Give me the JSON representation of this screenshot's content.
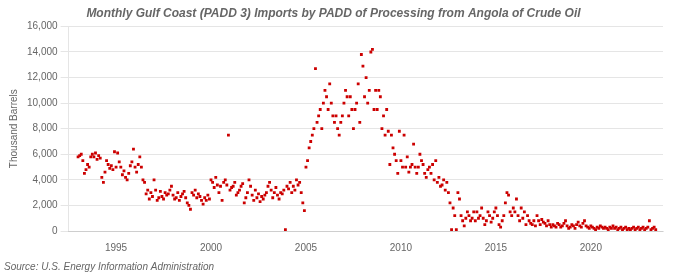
{
  "chart_data": {
    "type": "scatter",
    "title": "Monthly Gulf Coast (PADD 3) Imports by PADD of Processing from Angola of Crude Oil",
    "ylabel": "Thousand Barrels",
    "annotations": [
      "Source: U.S. Energy Information Administration"
    ],
    "color": "#cc0000",
    "marker": "square",
    "grid": "y",
    "xlim": [
      1992.5,
      2023.8
    ],
    "xticks": [
      1995,
      2000,
      2005,
      2010,
      2015,
      2020
    ],
    "ylim": [
      0,
      16000
    ],
    "yticks": [
      0,
      {
        "value": 2000,
        "label": "2,000"
      },
      {
        "value": 4000,
        "label": "4,000"
      },
      {
        "value": 6000,
        "label": "6,000"
      },
      {
        "value": 8000,
        "label": "8,000"
      },
      {
        "value": 10000,
        "label": "10,000"
      },
      {
        "value": 12000,
        "label": "12,000"
      },
      {
        "value": 14000,
        "label": "14,000"
      },
      {
        "value": 16000,
        "label": "16,000"
      }
    ],
    "x": [
      1993,
      1993.0833333333,
      1993.1666666667,
      1993.25,
      1993.3333333333,
      1993.4166666667,
      1993.5,
      1993.5833333333,
      1993.6666666667,
      1993.75,
      1993.8333333333,
      1993.9166666667,
      1994,
      1994.0833333333,
      1994.1666666667,
      1994.25,
      1994.3333333333,
      1994.4166666667,
      1994.5,
      1994.5833333333,
      1994.6666666667,
      1994.75,
      1994.8333333333,
      1994.9166666667,
      1995,
      1995.0833333333,
      1995.1666666667,
      1995.25,
      1995.3333333333,
      1995.4166666667,
      1995.5,
      1995.5833333333,
      1995.6666666667,
      1995.75,
      1995.8333333333,
      1995.9166666667,
      1996,
      1996.0833333333,
      1996.1666666667,
      1996.25,
      1996.3333333333,
      1996.4166666667,
      1996.5,
      1996.5833333333,
      1996.6666666667,
      1996.75,
      1996.8333333333,
      1996.9166666667,
      1997,
      1997.0833333333,
      1997.1666666667,
      1997.25,
      1997.3333333333,
      1997.4166666667,
      1997.5,
      1997.5833333333,
      1997.6666666667,
      1997.75,
      1997.8333333333,
      1997.9166666667,
      1998,
      1998.0833333333,
      1998.1666666667,
      1998.25,
      1998.3333333333,
      1998.4166666667,
      1998.5,
      1998.5833333333,
      1998.6666666667,
      1998.75,
      1998.8333333333,
      1998.9166666667,
      1999,
      1999.0833333333,
      1999.1666666667,
      1999.25,
      1999.3333333333,
      1999.4166666667,
      1999.5,
      1999.5833333333,
      1999.6666666667,
      1999.75,
      1999.8333333333,
      1999.9166666667,
      2000,
      2000.0833333333,
      2000.1666666667,
      2000.25,
      2000.3333333333,
      2000.4166666667,
      2000.5,
      2000.5833333333,
      2000.6666666667,
      2000.75,
      2000.8333333333,
      2000.9166666667,
      2001,
      2001.0833333333,
      2001.1666666667,
      2001.25,
      2001.3333333333,
      2001.4166666667,
      2001.5,
      2001.5833333333,
      2001.6666666667,
      2001.75,
      2001.8333333333,
      2001.9166666667,
      2002,
      2002.0833333333,
      2002.1666666667,
      2002.25,
      2002.3333333333,
      2002.4166666667,
      2002.5,
      2002.5833333333,
      2002.6666666667,
      2002.75,
      2002.8333333333,
      2002.9166666667,
      2003,
      2003.0833333333,
      2003.1666666667,
      2003.25,
      2003.3333333333,
      2003.4166666667,
      2003.5,
      2003.5833333333,
      2003.6666666667,
      2003.75,
      2003.8333333333,
      2003.9166666667,
      2004,
      2004.0833333333,
      2004.1666666667,
      2004.25,
      2004.3333333333,
      2004.4166666667,
      2004.5,
      2004.5833333333,
      2004.6666666667,
      2004.75,
      2004.8333333333,
      2004.9166666667,
      2005,
      2005.0833333333,
      2005.1666666667,
      2005.25,
      2005.3333333333,
      2005.4166666667,
      2005.5,
      2005.5833333333,
      2005.6666666667,
      2005.75,
      2005.8333333333,
      2005.9166666667,
      2006,
      2006.0833333333,
      2006.1666666667,
      2006.25,
      2006.3333333333,
      2006.4166666667,
      2006.5,
      2006.5833333333,
      2006.6666666667,
      2006.75,
      2006.8333333333,
      2006.9166666667,
      2007,
      2007.0833333333,
      2007.1666666667,
      2007.25,
      2007.3333333333,
      2007.4166666667,
      2007.5,
      2007.5833333333,
      2007.6666666667,
      2007.75,
      2007.8333333333,
      2007.9166666667,
      2008,
      2008.0833333333,
      2008.1666666667,
      2008.25,
      2008.3333333333,
      2008.4166666667,
      2008.5,
      2008.5833333333,
      2008.6666666667,
      2008.75,
      2008.8333333333,
      2008.9166666667,
      2009,
      2009.0833333333,
      2009.1666666667,
      2009.25,
      2009.3333333333,
      2009.4166666667,
      2009.5,
      2009.5833333333,
      2009.6666666667,
      2009.75,
      2009.8333333333,
      2009.9166666667,
      2010,
      2010.0833333333,
      2010.1666666667,
      2010.25,
      2010.3333333333,
      2010.4166666667,
      2010.5,
      2010.5833333333,
      2010.6666666667,
      2010.75,
      2010.8333333333,
      2010.9166666667,
      2011,
      2011.0833333333,
      2011.1666666667,
      2011.25,
      2011.3333333333,
      2011.4166666667,
      2011.5,
      2011.5833333333,
      2011.6666666667,
      2011.75,
      2011.8333333333,
      2011.9166666667,
      2012,
      2012.0833333333,
      2012.1666666667,
      2012.25,
      2012.3333333333,
      2012.4166666667,
      2012.5,
      2012.5833333333,
      2012.6666666667,
      2012.75,
      2012.8333333333,
      2012.9166666667,
      2013,
      2013.0833333333,
      2013.1666666667,
      2013.25,
      2013.3333333333,
      2013.4166666667,
      2013.5,
      2013.5833333333,
      2013.6666666667,
      2013.75,
      2013.8333333333,
      2013.9166666667,
      2014,
      2014.0833333333,
      2014.1666666667,
      2014.25,
      2014.3333333333,
      2014.4166666667,
      2014.5,
      2014.5833333333,
      2014.6666666667,
      2014.75,
      2014.8333333333,
      2014.9166666667,
      2015,
      2015.0833333333,
      2015.1666666667,
      2015.25,
      2015.3333333333,
      2015.4166666667,
      2015.5,
      2015.5833333333,
      2015.6666666667,
      2015.75,
      2015.8333333333,
      2015.9166666667,
      2016,
      2016.0833333333,
      2016.1666666667,
      2016.25,
      2016.3333333333,
      2016.4166666667,
      2016.5,
      2016.5833333333,
      2016.6666666667,
      2016.75,
      2016.8333333333,
      2016.9166666667,
      2017,
      2017.0833333333,
      2017.1666666667,
      2017.25,
      2017.3333333333,
      2017.4166666667,
      2017.5,
      2017.5833333333,
      2017.6666666667,
      2017.75,
      2017.8333333333,
      2017.9166666667,
      2018,
      2018.0833333333,
      2018.1666666667,
      2018.25,
      2018.3333333333,
      2018.4166666667,
      2018.5,
      2018.5833333333,
      2018.6666666667,
      2018.75,
      2018.8333333333,
      2018.9166666667,
      2019,
      2019.0833333333,
      2019.1666666667,
      2019.25,
      2019.3333333333,
      2019.4166666667,
      2019.5,
      2019.5833333333,
      2019.6666666667,
      2019.75,
      2019.8333333333,
      2019.9166666667,
      2020,
      2020.0833333333,
      2020.1666666667,
      2020.25,
      2020.3333333333,
      2020.4166666667,
      2020.5,
      2020.5833333333,
      2020.6666666667,
      2020.75,
      2020.8333333333,
      2020.9166666667,
      2021,
      2021.0833333333,
      2021.1666666667,
      2021.25,
      2021.3333333333,
      2021.4166666667,
      2021.5,
      2021.5833333333,
      2021.6666666667,
      2021.75,
      2021.8333333333,
      2021.9166666667,
      2022,
      2022.0833333333,
      2022.1666666667,
      2022.25,
      2022.3333333333,
      2022.4166666667,
      2022.5,
      2022.5833333333,
      2022.6666666667,
      2022.75,
      2022.8333333333,
      2022.9166666667,
      2023,
      2023.0833333333,
      2023.1666666667,
      2023.25,
      2023.3333333333,
      2023.4166666667
    ],
    "values": [
      5800,
      5900,
      6000,
      5500,
      4500,
      4800,
      5200,
      5000,
      5800,
      6000,
      5800,
      6100,
      5600,
      5900,
      5700,
      4200,
      3800,
      4600,
      5500,
      5200,
      4900,
      5100,
      4800,
      6200,
      5000,
      6100,
      5400,
      5000,
      4400,
      4700,
      4200,
      4000,
      4500,
      5100,
      5400,
      6400,
      5000,
      4600,
      5200,
      5800,
      5000,
      4000,
      3800,
      2900,
      3200,
      2500,
      3000,
      2700,
      4000,
      3200,
      2400,
      2600,
      3100,
      2700,
      2500,
      3000,
      2800,
      2900,
      3200,
      3500,
      2800,
      2500,
      2600,
      3000,
      2400,
      2700,
      2900,
      3100,
      2600,
      2200,
      2000,
      1700,
      3000,
      2800,
      3200,
      2600,
      2900,
      2700,
      2400,
      2100,
      2600,
      2400,
      2800,
      2500,
      4000,
      3800,
      3400,
      4200,
      3600,
      3000,
      3500,
      2400,
      3800,
      4000,
      3600,
      7500,
      3200,
      3400,
      3500,
      3800,
      2800,
      3000,
      3200,
      3500,
      3700,
      2200,
      2600,
      3000,
      4000,
      3500,
      2800,
      2400,
      3200,
      2600,
      2900,
      2300,
      2700,
      2500,
      2800,
      3000,
      3500,
      3800,
      3200,
      2600,
      3000,
      3400,
      2800,
      2500,
      3000,
      2900,
      3200,
      100,
      3500,
      3300,
      3800,
      3000,
      3500,
      3200,
      4000,
      3600,
      3800,
      3000,
      2200,
      1600,
      5000,
      5500,
      6500,
      7000,
      7500,
      8000,
      12700,
      8500,
      9000,
      9500,
      8000,
      10000,
      11000,
      10500,
      9500,
      11500,
      10000,
      9000,
      8500,
      9000,
      8000,
      7500,
      8500,
      9000,
      10000,
      11000,
      10500,
      9000,
      10500,
      9500,
      8000,
      9500,
      10000,
      11500,
      8500,
      13800,
      12900,
      10500,
      12000,
      10000,
      11000,
      14000,
      14200,
      9500,
      11000,
      9500,
      11000,
      10500,
      8000,
      9000,
      7500,
      9500,
      7800,
      5200,
      7500,
      6500,
      6000,
      5500,
      4500,
      7800,
      5500,
      5000,
      7500,
      5000,
      5800,
      4600,
      5000,
      5200,
      6800,
      5000,
      4500,
      5000,
      6000,
      5500,
      5200,
      4500,
      4200,
      4800,
      5000,
      4500,
      5200,
      4000,
      5500,
      3800,
      4200,
      3500,
      3600,
      4000,
      3200,
      3800,
      3000,
      2200,
      100,
      1800,
      1200,
      100,
      3000,
      2500,
      1200,
      800,
      400,
      1000,
      1500,
      1200,
      800,
      1000,
      1500,
      800,
      1500,
      1000,
      1200,
      1800,
      1000,
      500,
      800,
      1500,
      1200,
      700,
      1000,
      1500,
      1800,
      1200,
      500,
      300,
      800,
      1200,
      2200,
      3000,
      2800,
      1500,
      1200,
      1800,
      1500,
      2500,
      1200,
      800,
      1800,
      1000,
      1500,
      500,
      1200,
      800,
      600,
      500,
      800,
      400,
      1200,
      800,
      500,
      900,
      700,
      600,
      400,
      800,
      500,
      300,
      500,
      400,
      300,
      600,
      500,
      300,
      400,
      600,
      800,
      400,
      200,
      300,
      500,
      400,
      200,
      500,
      700,
      400,
      300,
      600,
      800,
      400,
      300,
      200,
      400,
      300,
      200,
      100,
      300,
      200,
      400,
      300,
      200,
      300,
      200,
      100,
      300,
      200,
      400,
      200,
      300,
      100,
      200,
      300,
      100,
      200,
      300,
      100,
      200,
      100,
      200,
      300,
      100,
      200,
      300,
      100,
      200,
      300,
      100,
      200,
      300,
      800,
      100,
      200,
      300,
      100
    ]
  }
}
